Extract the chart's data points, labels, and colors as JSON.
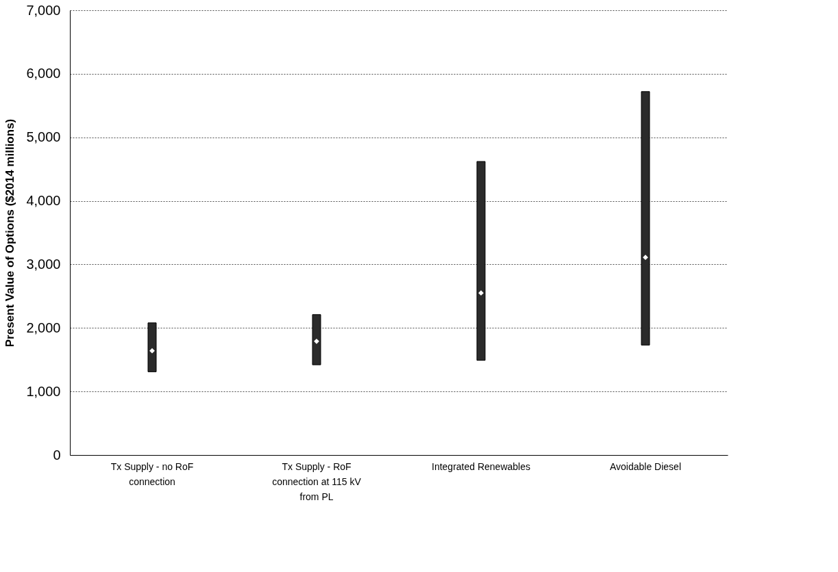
{
  "chart_data": {
    "type": "bar",
    "ylabel": "Present Value of Options ($2014 millions)",
    "categories": [
      "Tx Supply - no RoF connection",
      "Tx Supply - RoF connection at 115 kV from PL",
      "Integrated Renewables",
      "Avoidable Diesel"
    ],
    "series": [
      {
        "type": "bar",
        "color": "#2b2b2b",
        "base": [
          1310,
          1420,
          1490,
          1730
        ],
        "values": [
          770,
          790,
          3130,
          3990
        ]
      },
      {
        "type": "scatter",
        "color": "#ffffff",
        "marker": "diamond",
        "x": [
          "Tx Supply - no RoF connection",
          "Tx Supply - RoF connection at 115 kV from PL",
          "Integrated Renewables",
          "Avoidable Diesel"
        ],
        "values": [
          1640,
          1790,
          2550,
          3110
        ]
      }
    ],
    "ylim": [
      0,
      7000
    ],
    "yticks": [
      {
        "value": 0,
        "label": "0"
      },
      {
        "value": 1000,
        "label": "1,000"
      },
      {
        "value": 2000,
        "label": "2,000"
      },
      {
        "value": 3000,
        "label": "3,000"
      },
      {
        "value": 4000,
        "label": "4,000"
      },
      {
        "value": 5000,
        "label": "5,000"
      },
      {
        "value": 6000,
        "label": "6,000"
      },
      {
        "value": 7000,
        "label": "7,000"
      }
    ],
    "grid": "y"
  }
}
